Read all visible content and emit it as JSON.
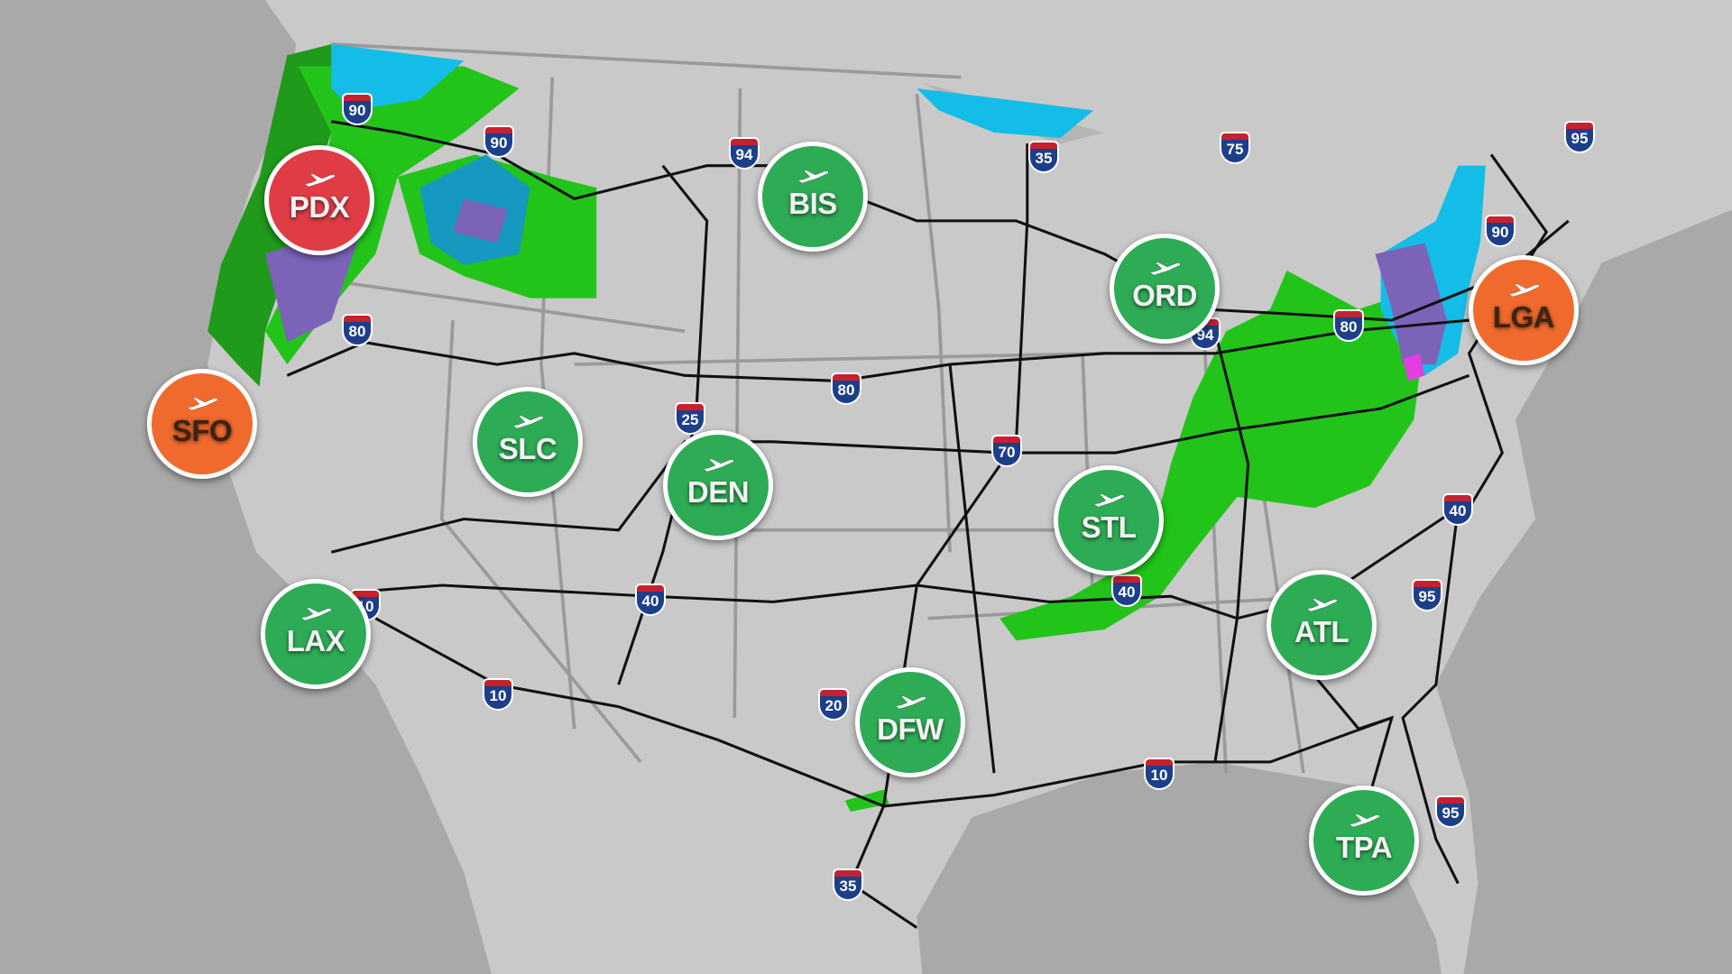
{
  "colors": {
    "land": "#c9c9c9",
    "ocean": "#a9a9a9",
    "ok": "#2eab55",
    "delay": "#e03c46",
    "moderate": "#f06a2e",
    "rain_light": "#22c41a",
    "rain_heavy": "#1f9a1a",
    "snow": "#13bde8",
    "snow_heavy": "#1599c0",
    "mix": "#7b63b8",
    "ice": "#e33ee0"
  },
  "airports": [
    {
      "code": "PDX",
      "status": "delay"
    },
    {
      "code": "SFO",
      "status": "moderate"
    },
    {
      "code": "BIS",
      "status": "ok"
    },
    {
      "code": "ORD",
      "status": "ok"
    },
    {
      "code": "LGA",
      "status": "moderate"
    },
    {
      "code": "SLC",
      "status": "ok"
    },
    {
      "code": "DEN",
      "status": "ok"
    },
    {
      "code": "STL",
      "status": "ok"
    },
    {
      "code": "LAX",
      "status": "ok"
    },
    {
      "code": "ATL",
      "status": "ok"
    },
    {
      "code": "DFW",
      "status": "ok"
    },
    {
      "code": "TPA",
      "status": "ok"
    }
  ],
  "interstates": [
    "90",
    "90",
    "94",
    "35",
    "75",
    "95",
    "90",
    "80",
    "94",
    "80",
    "80",
    "25",
    "70",
    "40",
    "95",
    "40",
    "40",
    "10",
    "10",
    "20",
    "10",
    "95",
    "35"
  ]
}
